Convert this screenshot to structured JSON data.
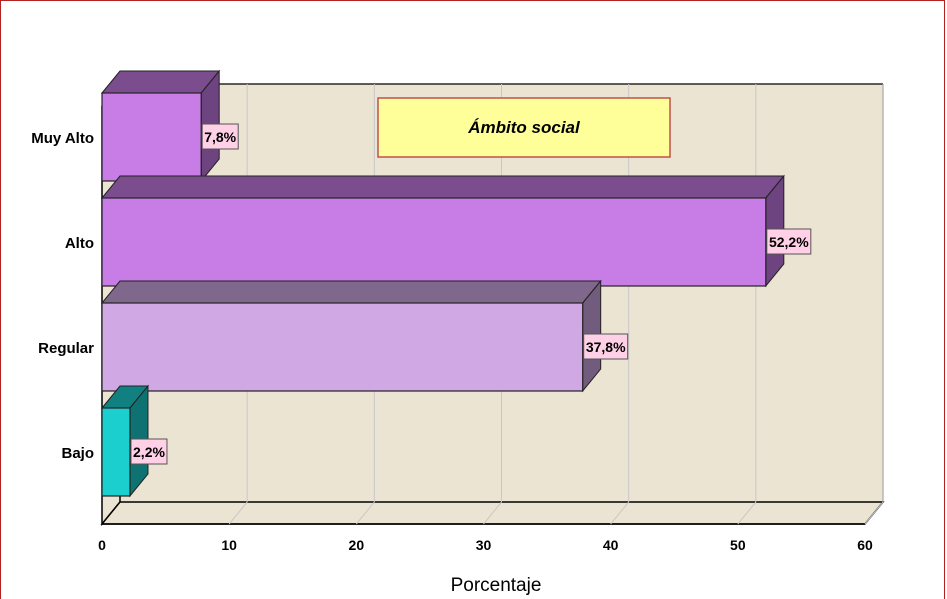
{
  "chart_data": {
    "type": "bar",
    "orientation": "horizontal",
    "title": "Ámbito social",
    "xlabel": "Porcentaje",
    "ylabel": "",
    "xlim": [
      0,
      60
    ],
    "xticks": [
      "0",
      "10",
      "20",
      "30",
      "40",
      "50",
      "60"
    ],
    "categories": [
      "Bajo",
      "Regular",
      "Alto",
      "Muy Alto"
    ],
    "values": [
      2.2,
      37.8,
      52.2,
      7.8
    ],
    "data_labels": [
      "2,2%",
      "37,8%",
      "52,2%",
      "7,8%"
    ],
    "colors": [
      "#1ccfcf",
      "#cfa8e4",
      "#c77ce6",
      "#c77ce6"
    ],
    "grid": true,
    "legend": "none",
    "style": "3d"
  }
}
